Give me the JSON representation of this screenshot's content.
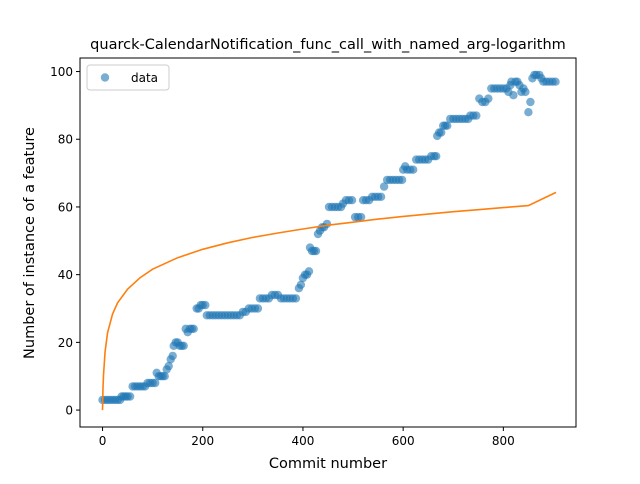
{
  "chart_data": {
    "type": "scatter",
    "title": "quarck-CalendarNotification_func_call_with_named_arg-logarithm",
    "xlabel": "Commit number",
    "ylabel": "Number of instance of a feature",
    "xlim": [
      -45,
      945
    ],
    "ylim": [
      -5,
      104
    ],
    "xticks": [
      0,
      200,
      400,
      600,
      800
    ],
    "yticks": [
      0,
      20,
      40,
      60,
      80,
      100
    ],
    "grid": false,
    "legend": {
      "position": "top-left",
      "entries": [
        {
          "label": "data",
          "marker": "circle",
          "color": "#1f77b4"
        }
      ]
    },
    "series": [
      {
        "name": "data",
        "kind": "scatter",
        "color": "#1f77b4",
        "points": [
          [
            0,
            3
          ],
          [
            5,
            3
          ],
          [
            10,
            3
          ],
          [
            15,
            3
          ],
          [
            20,
            3
          ],
          [
            25,
            3
          ],
          [
            30,
            3
          ],
          [
            35,
            3
          ],
          [
            38,
            4
          ],
          [
            42,
            4
          ],
          [
            46,
            4
          ],
          [
            50,
            4
          ],
          [
            55,
            4
          ],
          [
            60,
            7
          ],
          [
            65,
            7
          ],
          [
            70,
            7
          ],
          [
            75,
            7
          ],
          [
            80,
            7
          ],
          [
            85,
            7
          ],
          [
            90,
            8
          ],
          [
            95,
            8
          ],
          [
            100,
            8
          ],
          [
            105,
            8
          ],
          [
            108,
            11
          ],
          [
            112,
            10
          ],
          [
            116,
            10
          ],
          [
            120,
            10
          ],
          [
            124,
            10
          ],
          [
            128,
            12
          ],
          [
            132,
            13
          ],
          [
            136,
            15
          ],
          [
            140,
            16
          ],
          [
            142,
            19
          ],
          [
            146,
            20
          ],
          [
            150,
            20
          ],
          [
            154,
            19
          ],
          [
            158,
            19
          ],
          [
            162,
            19
          ],
          [
            166,
            24
          ],
          [
            170,
            23
          ],
          [
            174,
            24
          ],
          [
            178,
            24
          ],
          [
            182,
            24
          ],
          [
            188,
            30
          ],
          [
            192,
            30
          ],
          [
            196,
            31
          ],
          [
            200,
            31
          ],
          [
            205,
            31
          ],
          [
            208,
            28
          ],
          [
            214,
            28
          ],
          [
            220,
            28
          ],
          [
            226,
            28
          ],
          [
            232,
            28
          ],
          [
            238,
            28
          ],
          [
            244,
            28
          ],
          [
            250,
            28
          ],
          [
            256,
            28
          ],
          [
            262,
            28
          ],
          [
            268,
            28
          ],
          [
            274,
            28
          ],
          [
            280,
            29
          ],
          [
            286,
            29
          ],
          [
            292,
            30
          ],
          [
            298,
            30
          ],
          [
            304,
            30
          ],
          [
            310,
            30
          ],
          [
            314,
            33
          ],
          [
            320,
            33
          ],
          [
            326,
            33
          ],
          [
            332,
            33
          ],
          [
            338,
            34
          ],
          [
            344,
            34
          ],
          [
            350,
            34
          ],
          [
            356,
            33
          ],
          [
            362,
            33
          ],
          [
            368,
            33
          ],
          [
            374,
            33
          ],
          [
            380,
            33
          ],
          [
            386,
            33
          ],
          [
            392,
            36
          ],
          [
            396,
            37
          ],
          [
            400,
            39
          ],
          [
            404,
            40
          ],
          [
            408,
            40
          ],
          [
            412,
            41
          ],
          [
            414,
            48
          ],
          [
            418,
            47
          ],
          [
            422,
            47
          ],
          [
            426,
            47
          ],
          [
            430,
            52
          ],
          [
            434,
            53
          ],
          [
            438,
            54
          ],
          [
            442,
            54
          ],
          [
            448,
            55
          ],
          [
            452,
            60
          ],
          [
            458,
            60
          ],
          [
            464,
            60
          ],
          [
            470,
            60
          ],
          [
            476,
            60
          ],
          [
            480,
            61
          ],
          [
            486,
            62
          ],
          [
            492,
            62
          ],
          [
            498,
            62
          ],
          [
            504,
            57
          ],
          [
            510,
            57
          ],
          [
            516,
            57
          ],
          [
            520,
            62
          ],
          [
            526,
            62
          ],
          [
            532,
            62
          ],
          [
            538,
            63
          ],
          [
            544,
            63
          ],
          [
            550,
            63
          ],
          [
            556,
            63
          ],
          [
            562,
            66
          ],
          [
            568,
            68
          ],
          [
            574,
            68
          ],
          [
            580,
            68
          ],
          [
            586,
            68
          ],
          [
            592,
            68
          ],
          [
            598,
            68
          ],
          [
            600,
            71
          ],
          [
            604,
            72
          ],
          [
            608,
            71
          ],
          [
            614,
            71
          ],
          [
            620,
            71
          ],
          [
            626,
            74
          ],
          [
            632,
            74
          ],
          [
            638,
            74
          ],
          [
            644,
            74
          ],
          [
            650,
            74
          ],
          [
            656,
            75
          ],
          [
            662,
            75
          ],
          [
            666,
            75
          ],
          [
            668,
            81
          ],
          [
            672,
            82
          ],
          [
            676,
            82
          ],
          [
            680,
            84
          ],
          [
            684,
            84
          ],
          [
            688,
            84
          ],
          [
            694,
            86
          ],
          [
            700,
            86
          ],
          [
            706,
            86
          ],
          [
            712,
            86
          ],
          [
            718,
            86
          ],
          [
            724,
            86
          ],
          [
            730,
            86
          ],
          [
            734,
            87
          ],
          [
            740,
            87
          ],
          [
            746,
            87
          ],
          [
            752,
            92
          ],
          [
            758,
            91
          ],
          [
            764,
            91
          ],
          [
            770,
            92
          ],
          [
            776,
            95
          ],
          [
            782,
            95
          ],
          [
            788,
            95
          ],
          [
            794,
            95
          ],
          [
            800,
            95
          ],
          [
            806,
            95
          ],
          [
            810,
            94
          ],
          [
            814,
            96
          ],
          [
            816,
            97
          ],
          [
            820,
            93
          ],
          [
            824,
            97
          ],
          [
            828,
            97
          ],
          [
            832,
            96
          ],
          [
            836,
            94
          ],
          [
            840,
            95
          ],
          [
            844,
            94
          ],
          [
            850,
            88
          ],
          [
            854,
            91
          ],
          [
            858,
            98
          ],
          [
            862,
            99
          ],
          [
            866,
            99
          ],
          [
            872,
            99
          ],
          [
            876,
            98
          ],
          [
            880,
            97
          ],
          [
            886,
            97
          ],
          [
            892,
            97
          ],
          [
            898,
            97
          ],
          [
            904,
            97
          ]
        ]
      },
      {
        "name": "fit",
        "kind": "line",
        "color": "#ff7f0e",
        "points": [
          [
            0,
            0
          ],
          [
            1,
            6.5
          ],
          [
            2,
            10.3
          ],
          [
            5,
            17.3
          ],
          [
            10,
            22.9
          ],
          [
            20,
            28.4
          ],
          [
            30,
            31.7
          ],
          [
            50,
            35.7
          ],
          [
            75,
            39.1
          ],
          [
            100,
            41.6
          ],
          [
            150,
            45.0
          ],
          [
            200,
            47.5
          ],
          [
            250,
            49.4
          ],
          [
            300,
            51.0
          ],
          [
            350,
            52.3
          ],
          [
            400,
            53.5
          ],
          [
            450,
            54.6
          ],
          [
            500,
            55.5
          ],
          [
            550,
            56.4
          ],
          [
            600,
            57.2
          ],
          [
            650,
            57.9
          ],
          [
            700,
            58.6
          ],
          [
            750,
            59.2
          ],
          [
            800,
            59.8
          ],
          [
            850,
            60.4
          ],
          [
            905,
            64.3
          ]
        ]
      }
    ]
  }
}
